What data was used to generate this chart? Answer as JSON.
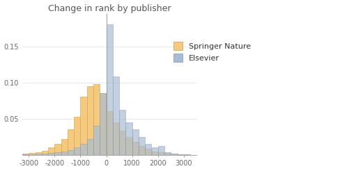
{
  "title": "Change in rank by publisher",
  "xlim": [
    -3250,
    3500
  ],
  "ylim": [
    0,
    0.195
  ],
  "bin_width": 250,
  "bin_centers": [
    -3125,
    -2875,
    -2625,
    -2375,
    -2125,
    -1875,
    -1625,
    -1375,
    -1125,
    -875,
    -625,
    -375,
    -125,
    125,
    375,
    625,
    875,
    1125,
    1375,
    1625,
    1875,
    2125,
    2375,
    2625,
    2875,
    3125
  ],
  "springer_nature": [
    0.002,
    0.003,
    0.004,
    0.006,
    0.01,
    0.015,
    0.022,
    0.035,
    0.053,
    0.08,
    0.095,
    0.098,
    0.085,
    0.06,
    0.045,
    0.033,
    0.025,
    0.018,
    0.012,
    0.008,
    0.005,
    0.004,
    0.003,
    0.002,
    0.001,
    0.001
  ],
  "elsevier": [
    0.001,
    0.001,
    0.002,
    0.002,
    0.003,
    0.004,
    0.005,
    0.007,
    0.01,
    0.015,
    0.022,
    0.04,
    0.085,
    0.18,
    0.108,
    0.062,
    0.045,
    0.035,
    0.025,
    0.015,
    0.01,
    0.012,
    0.004,
    0.002,
    0.001,
    0.001
  ],
  "springer_color": "#f5c97e",
  "elsevier_color": "#a8bdd4",
  "springer_edge": "#c8a050",
  "elsevier_edge": "#8090b0",
  "yticks": [
    0.05,
    0.1,
    0.15
  ],
  "ytick_labels": [
    "0.05",
    "0.10",
    "0.15"
  ],
  "xticks": [
    -3000,
    -2000,
    -1000,
    0,
    1000,
    2000,
    3000
  ],
  "title_fontsize": 9,
  "tick_fontsize": 7,
  "legend_fontsize": 8
}
